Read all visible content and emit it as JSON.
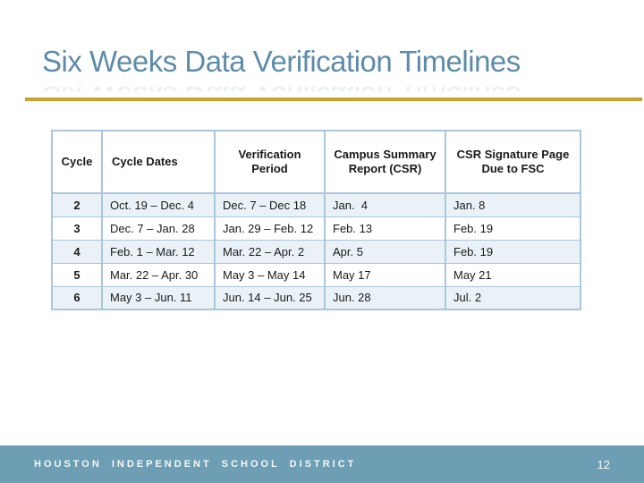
{
  "slide": {
    "title": "Six Weeks Data Verification Timelines",
    "footer_text": "HOUSTON INDEPENDENT SCHOOL DISTRICT",
    "page_number": "12"
  },
  "colors": {
    "title": "#5d8ca8",
    "accent_line": "#c9a22d",
    "table_border": "#a9c7d9",
    "row_band": "#eaf2f8",
    "footer_bar": "#6d9eb3",
    "footer_text": "#f4f8fa",
    "cell_text": "#1a1a1a"
  },
  "table": {
    "columns": [
      "Cycle",
      "Cycle Dates",
      "Verification Period",
      "Campus Summary Report (CSR)",
      "CSR Signature Page Due to FSC"
    ],
    "rows": [
      [
        "2",
        "Oct. 19 – Dec. 4",
        "Dec. 7 – Dec 18",
        "Jan.  4",
        "Jan. 8"
      ],
      [
        "3",
        "Dec. 7 – Jan. 28",
        "Jan. 29 – Feb. 12",
        "Feb. 13",
        "Feb. 19"
      ],
      [
        "4",
        "Feb. 1 – Mar. 12",
        "Mar. 22 – Apr. 2",
        "Apr. 5",
        "Feb. 19"
      ],
      [
        "5",
        "Mar. 22 – Apr. 30",
        "May 3 – May 14",
        "May 17",
        "May 21"
      ],
      [
        "6",
        "May 3 – Jun. 11",
        "Jun. 14 – Jun. 25",
        "Jun. 28",
        "Jul. 2"
      ]
    ]
  }
}
